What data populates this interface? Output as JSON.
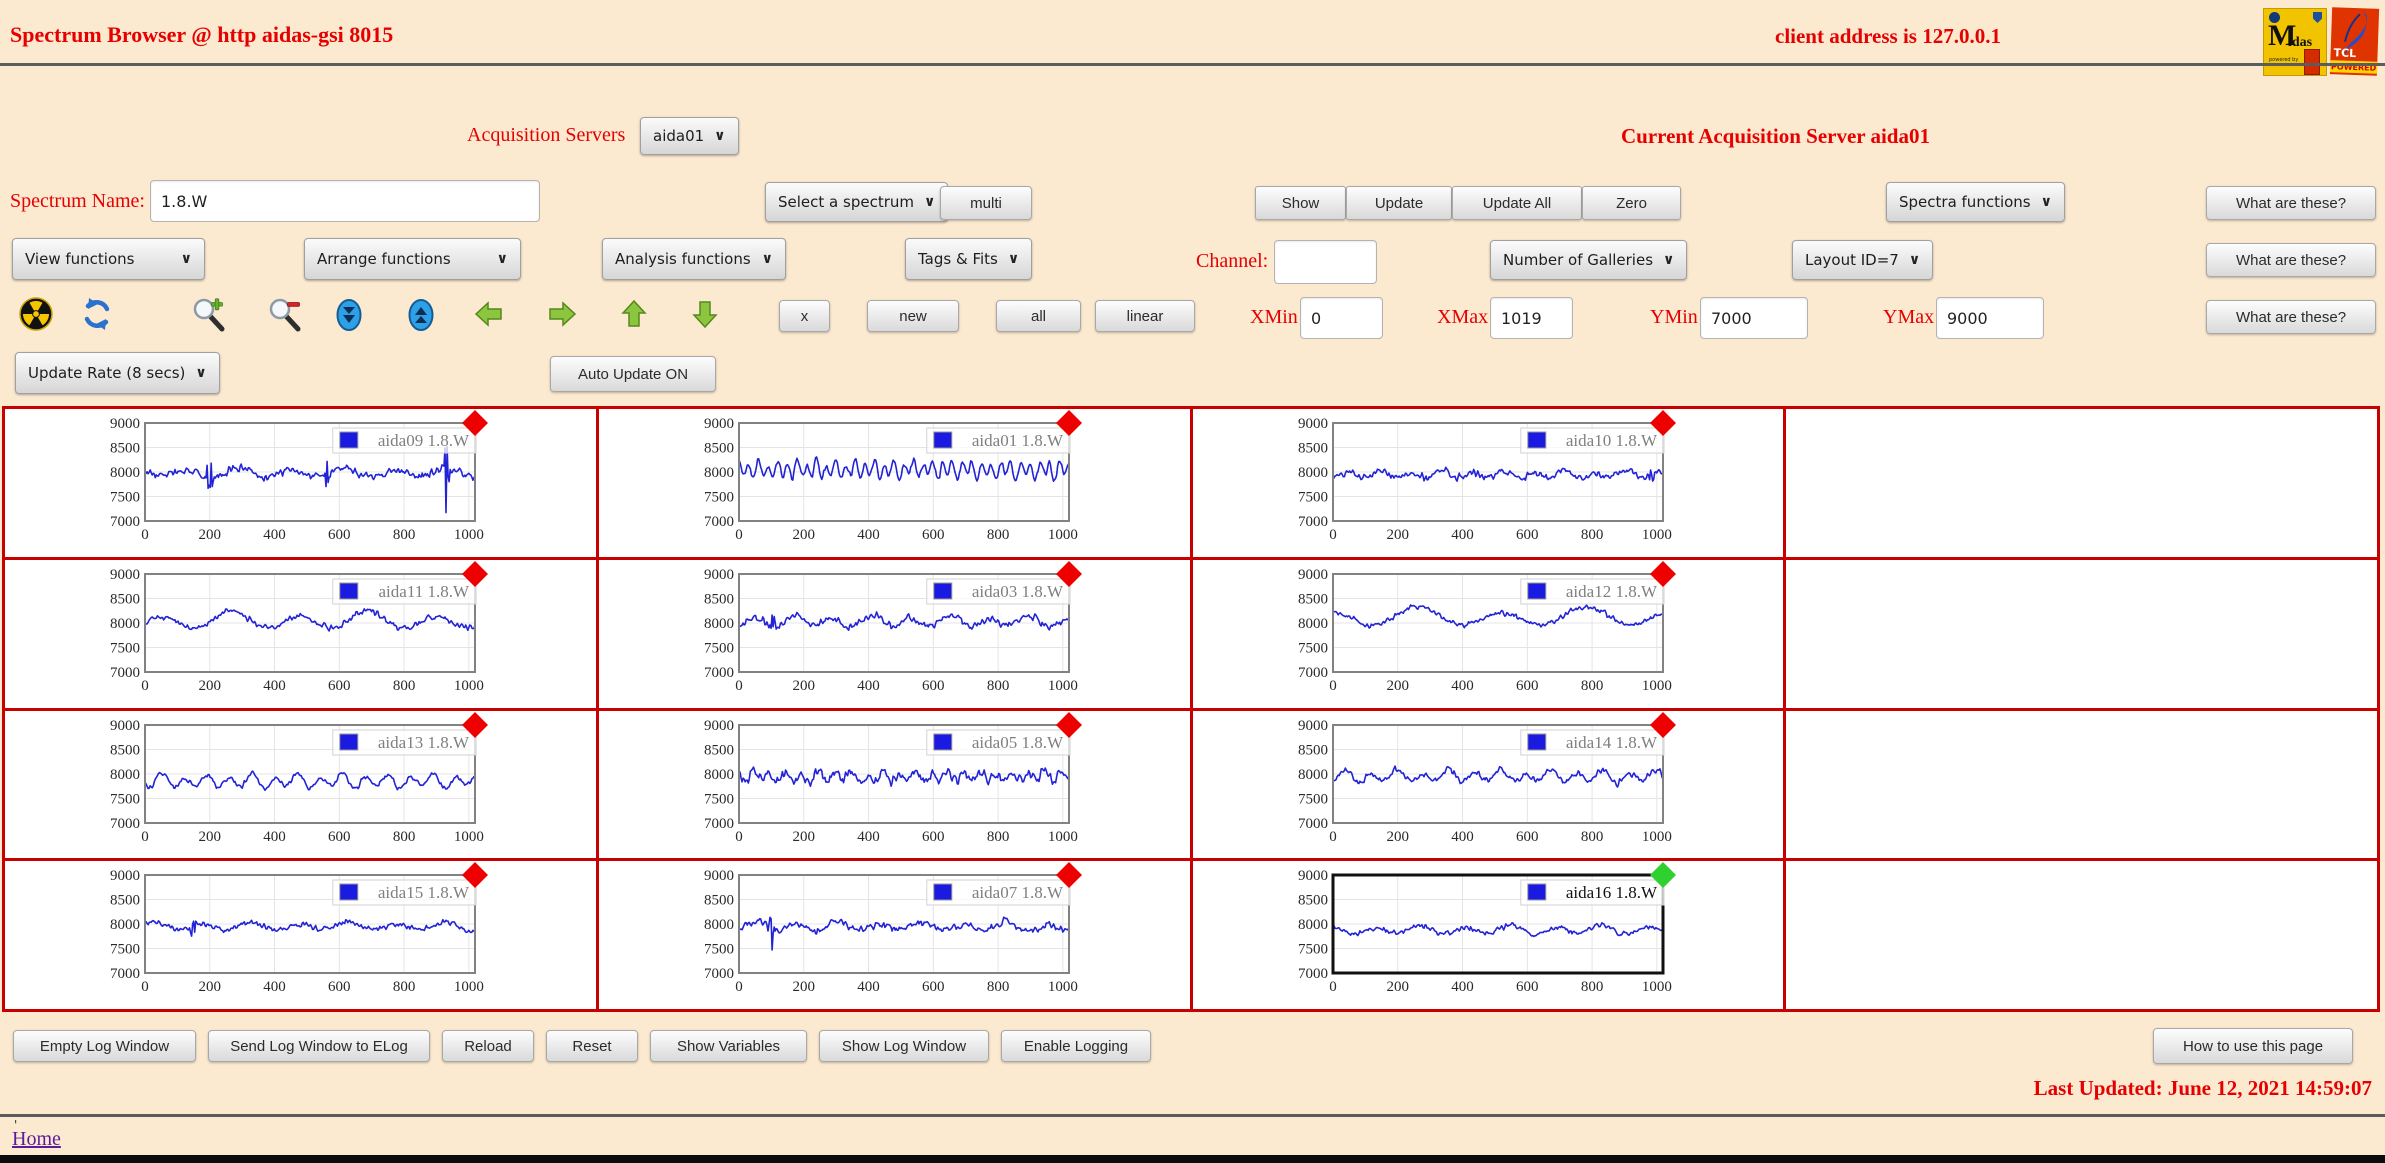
{
  "icons": {
    "chevron": "∨"
  },
  "colors": {
    "accent_red": "#e60000",
    "gallery_border": "#c90000",
    "line_blue": "#2323d6",
    "marker_red": "#ee0000",
    "marker_green": "#2fd02f",
    "page_bg": "#fbe9d0"
  },
  "header": {
    "title": "Spectrum Browser @ http aidas-gsi 8015",
    "client_address": "client address is 127.0.0.1",
    "midas_m": "M",
    "midas_rest": "idas",
    "midas_powered": "powered by",
    "tcl_name": "TCL",
    "tcl_powered": "POWERED"
  },
  "server_row": {
    "label": "Acquisition Servers",
    "select_value": "aida01",
    "current_label": "Current Acquisition Server aida01"
  },
  "spectrum_row": {
    "name_label": "Spectrum Name:",
    "name_value": "1.8.W",
    "select_spectrum": "Select a spectrum",
    "multi": "multi",
    "show": "Show",
    "update": "Update",
    "update_all": "Update All",
    "zero": "Zero",
    "spectra_functions": "Spectra functions",
    "what": "What are these?"
  },
  "functions_row": {
    "view": "View functions",
    "arrange": "Arrange functions",
    "analysis": "Analysis functions",
    "tags": "Tags & Fits",
    "channel_label": "Channel:",
    "channel_value": "",
    "galleries": "Number of Galleries",
    "layout": "Layout ID=7",
    "what": "What are these?"
  },
  "nav_row": {
    "x": "x",
    "new": "new",
    "all": "all",
    "linear": "linear",
    "xmin_label": "XMin",
    "xmin": "0",
    "xmax_label": "XMax",
    "xmax": "1019",
    "ymin_label": "YMin",
    "ymin": "7000",
    "ymax_label": "YMax",
    "ymax": "9000",
    "what": "What are these?"
  },
  "update_row": {
    "rate": "Update Rate (8 secs)",
    "auto": "Auto Update ON"
  },
  "log_row": {
    "buttons": [
      "Empty Log Window",
      "Send Log Window to ELog",
      "Reload",
      "Reset",
      "Show Variables",
      "Show Log Window",
      "Enable Logging"
    ],
    "how": "How to use this page"
  },
  "footer": {
    "last_updated": "Last Updated: June 12, 2021 14:59:07",
    "home": "Home",
    "stray": "'"
  },
  "chart_data": {
    "type": "line",
    "xlabel": "",
    "ylabel": "",
    "xlim": [
      0,
      1019
    ],
    "ylim": [
      7000,
      9000
    ],
    "x_ticks": [
      0,
      200,
      400,
      600,
      800,
      1000
    ],
    "y_ticks": [
      7000,
      7500,
      8000,
      8500,
      9000
    ],
    "grid": true,
    "legend_position": "top-right",
    "grid_layout": {
      "rows": 4,
      "cols": 4,
      "charts_per_row": 3
    },
    "charts": [
      {
        "name": "aida09",
        "legend": "aida09 1.8.W",
        "marker": "#ee0000",
        "selected": false,
        "seed": 9,
        "base": 7980,
        "noise": 80,
        "wave": 70,
        "period": 160,
        "spikes": [
          200,
          565,
          930
        ],
        "spike_mag": 800
      },
      {
        "name": "aida01",
        "legend": "aida01 1.8.W",
        "marker": "#ee0000",
        "selected": false,
        "seed": 1,
        "base": 8050,
        "noise": 70,
        "wave": 145,
        "period": 30,
        "spikes": [],
        "spike_mag": 0
      },
      {
        "name": "aida10",
        "legend": "aida10 1.8.W",
        "marker": "#ee0000",
        "selected": false,
        "seed": 10,
        "base": 7950,
        "noise": 70,
        "wave": 60,
        "period": 95,
        "spikes": [
          980
        ],
        "spike_mag": 420
      },
      {
        "name": "aida11",
        "legend": "aida11 1.8.W",
        "marker": "#ee0000",
        "selected": false,
        "seed": 11,
        "base": 8050,
        "noise": 60,
        "wave": 140,
        "period": 210,
        "spikes": [],
        "spike_mag": 0
      },
      {
        "name": "aida03",
        "legend": "aida03 1.8.W",
        "marker": "#ee0000",
        "selected": false,
        "seed": 3,
        "base": 8030,
        "noise": 80,
        "wave": 90,
        "period": 120,
        "spikes": [
          105
        ],
        "spike_mag": 460
      },
      {
        "name": "aida12",
        "legend": "aida12 1.8.W",
        "marker": "#ee0000",
        "selected": false,
        "seed": 12,
        "base": 8120,
        "noise": 55,
        "wave": 150,
        "period": 260,
        "spikes": [],
        "spike_mag": 0
      },
      {
        "name": "aida13",
        "legend": "aida13 1.8.W",
        "marker": "#ee0000",
        "selected": false,
        "seed": 13,
        "base": 7850,
        "noise": 55,
        "wave": 110,
        "period": 70,
        "spikes": [],
        "spike_mag": 0
      },
      {
        "name": "aida05",
        "legend": "aida05 1.8.W",
        "marker": "#ee0000",
        "selected": false,
        "seed": 5,
        "base": 7950,
        "noise": 110,
        "wave": 80,
        "period": 50,
        "spikes": [],
        "spike_mag": 0
      },
      {
        "name": "aida14",
        "legend": "aida14 1.8.W",
        "marker": "#ee0000",
        "selected": false,
        "seed": 14,
        "base": 7950,
        "noise": 70,
        "wave": 100,
        "period": 80,
        "spikes": [],
        "spike_mag": 0
      },
      {
        "name": "aida15",
        "legend": "aida15 1.8.W",
        "marker": "#ee0000",
        "selected": false,
        "seed": 15,
        "base": 7950,
        "noise": 55,
        "wave": 60,
        "period": 150,
        "spikes": [
          150
        ],
        "spike_mag": 380
      },
      {
        "name": "aida07",
        "legend": "aida07 1.8.W",
        "marker": "#ee0000",
        "selected": false,
        "seed": 7,
        "base": 7950,
        "noise": 75,
        "wave": 80,
        "period": 130,
        "spikes": [
          100
        ],
        "spike_mag": 430
      },
      {
        "name": "aida16",
        "legend": "aida16 1.8.W",
        "marker": "#2fd02f",
        "selected": true,
        "seed": 16,
        "base": 7880,
        "noise": 55,
        "wave": 70,
        "period": 140,
        "spikes": [],
        "spike_mag": 0
      }
    ]
  }
}
